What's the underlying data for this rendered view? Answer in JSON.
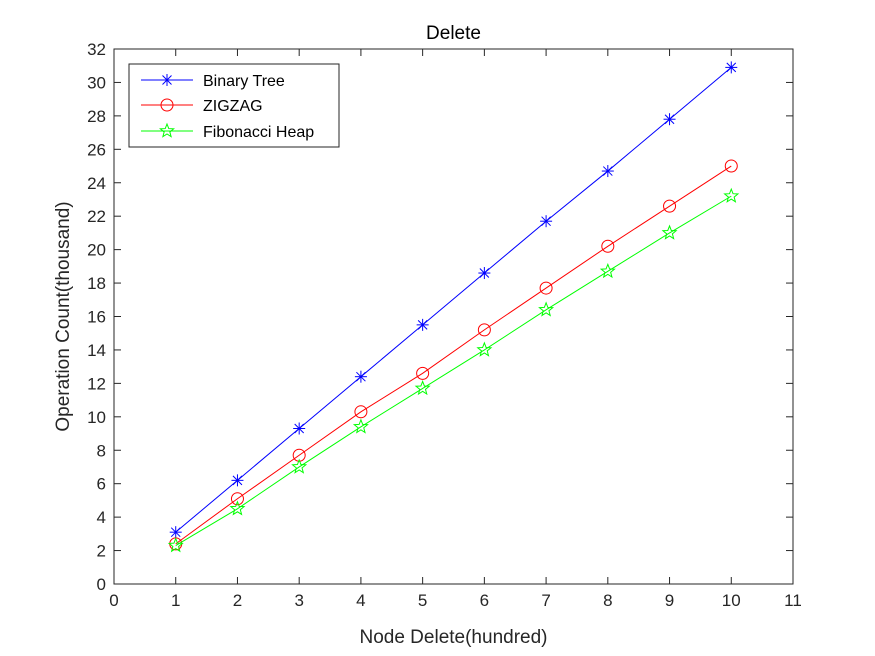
{
  "chart_data": {
    "type": "line",
    "title": "Delete",
    "xlabel": "Node Delete(hundred)",
    "ylabel": "Operation Count(thousand)",
    "xlim": [
      0,
      11
    ],
    "ylim": [
      0,
      32
    ],
    "xticks": [
      "0",
      "1",
      "2",
      "3",
      "4",
      "5",
      "6",
      "7",
      "8",
      "9",
      "10",
      "11"
    ],
    "yticks": [
      "0",
      "2",
      "4",
      "6",
      "8",
      "10",
      "12",
      "14",
      "16",
      "18",
      "20",
      "22",
      "24",
      "26",
      "28",
      "30",
      "32"
    ],
    "grid": false,
    "legend_position": "top-left",
    "x": [
      1,
      2,
      3,
      4,
      5,
      6,
      7,
      8,
      9,
      10
    ],
    "series": [
      {
        "name": "Binary Tree",
        "color": "#0000ff",
        "marker": "asterisk",
        "values": [
          3.1,
          6.2,
          9.3,
          12.4,
          15.5,
          18.6,
          21.7,
          24.7,
          27.8,
          30.9
        ]
      },
      {
        "name": "ZIGZAG",
        "color": "#ff0000",
        "marker": "circle",
        "values": [
          2.4,
          5.1,
          7.7,
          10.3,
          12.6,
          15.2,
          17.7,
          20.2,
          22.6,
          25.0
        ]
      },
      {
        "name": "Fibonacci Heap",
        "color": "#00ff00",
        "marker": "pentagram",
        "values": [
          2.3,
          4.5,
          7.0,
          9.4,
          11.7,
          14.0,
          16.4,
          18.7,
          21.0,
          23.2
        ]
      }
    ]
  }
}
